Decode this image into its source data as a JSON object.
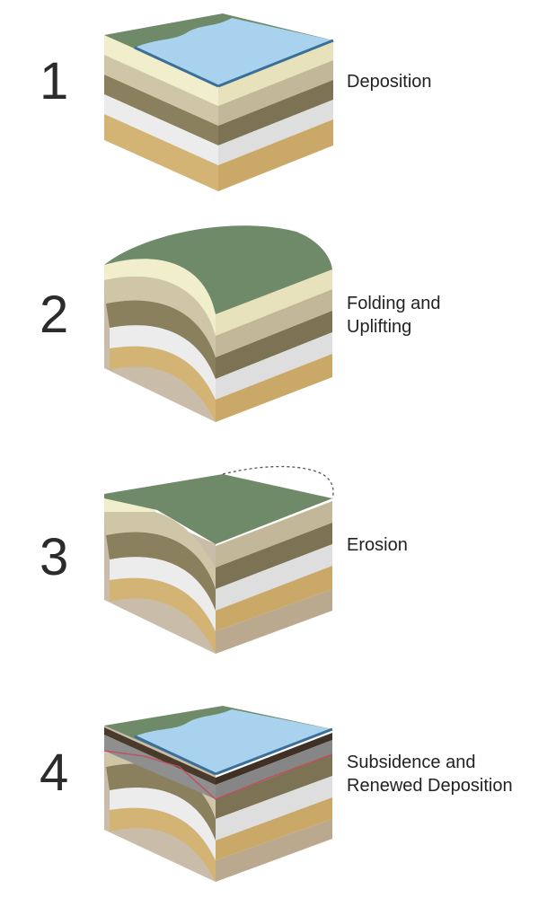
{
  "stages": [
    {
      "number": "1",
      "label_lines": [
        "Deposition"
      ]
    },
    {
      "number": "2",
      "label_lines": [
        "Folding and",
        "Uplifting"
      ]
    },
    {
      "number": "3",
      "label_lines": [
        "Erosion"
      ]
    },
    {
      "number": "4",
      "label_lines": [
        "Subsidence and",
        "Renewed Deposition"
      ]
    }
  ],
  "colors": {
    "water": "#a9d2ee",
    "water_edge": "#3b6f98",
    "vegetation": "#6f8a68",
    "layer_cream": "#f1eecb",
    "layer_khaki": "#cfc6a8",
    "layer_olive": "#8a805e",
    "layer_white": "#eeeeee",
    "layer_tan": "#d8b978",
    "base_grey": "#c9bda9",
    "dark_band": "#4a3a2c",
    "unconformity": "#c7495a"
  }
}
